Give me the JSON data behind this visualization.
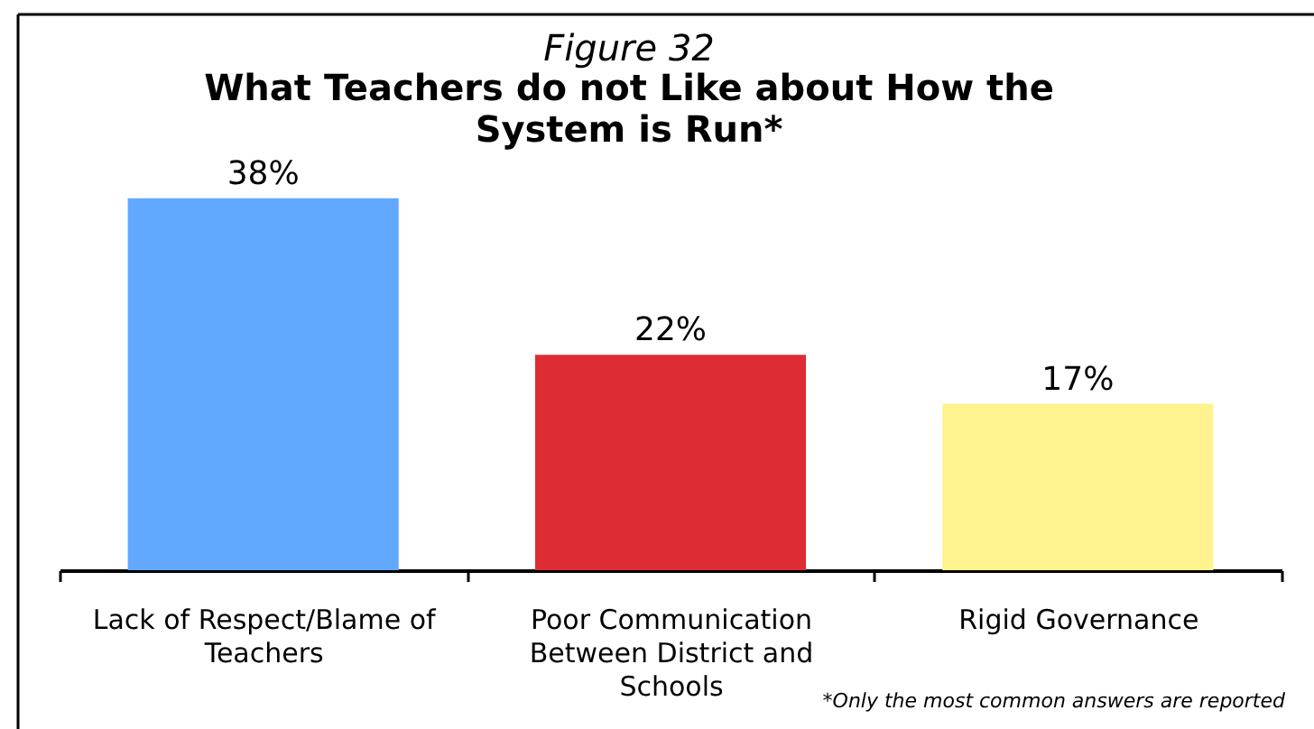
{
  "chart_data": {
    "type": "bar",
    "subtitle": "Figure 32",
    "title": "What Teachers do not Like about How the System is Run*",
    "categories": [
      "Lack of Respect/Blame of Teachers",
      "Poor Communication Between District and Schools",
      "Rigid Governance"
    ],
    "values": [
      38,
      22,
      17
    ],
    "colors": [
      "#62a8ff",
      "#dd2c33",
      "#fff38f"
    ],
    "value_labels": [
      "38%",
      "22%",
      "17%"
    ],
    "annotations": [
      "*Only the most common answers are reported"
    ]
  }
}
